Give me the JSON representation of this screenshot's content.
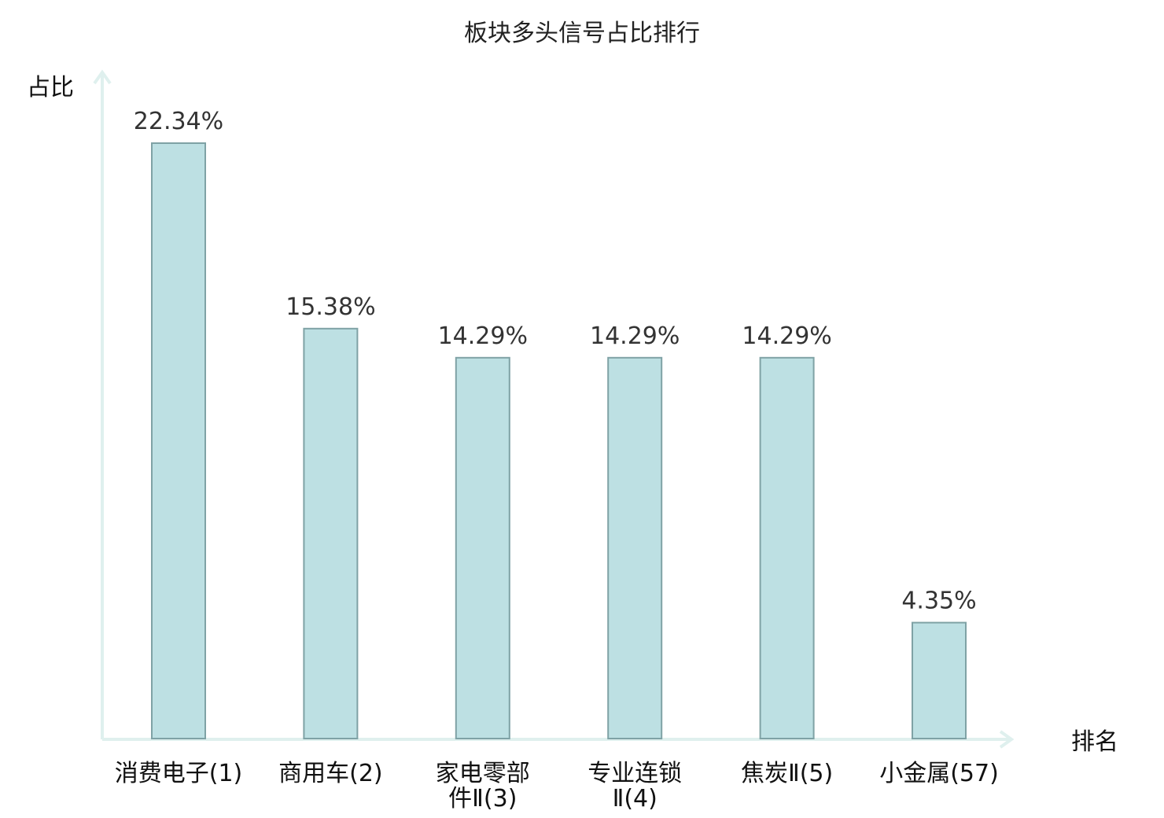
{
  "chart_data": {
    "type": "bar",
    "title": "板块多头信号占比排行",
    "ylabel": "占比",
    "xlabel": "排名",
    "categories": [
      "消费电子(1)",
      "商用车(2)",
      "家电零部件Ⅱ(3)",
      "专业连锁Ⅱ(4)",
      "焦炭Ⅱ(5)",
      "小金属(57)"
    ],
    "category_lines": [
      [
        "消费电子(1)"
      ],
      [
        "商用车(2)"
      ],
      [
        "家电零部",
        "件Ⅱ(3)"
      ],
      [
        "专业连锁",
        "Ⅱ(4)"
      ],
      [
        "焦炭Ⅱ(5)"
      ],
      [
        "小金属(57)"
      ]
    ],
    "highlight_category": "小金属(57)",
    "values": [
      22.34,
      15.38,
      14.29,
      14.29,
      14.29,
      4.35
    ],
    "value_labels": [
      "22.34%",
      "15.38%",
      "14.29%",
      "14.29%",
      "14.29%",
      "4.35%"
    ],
    "ylim": [
      0,
      22.34
    ],
    "grid": false,
    "legend": "none"
  },
  "colors": {
    "bar_fill": "#bde0e3",
    "bar_stroke": "#7fa2a5",
    "axis": "#dff0ee",
    "highlight": "#dd1111",
    "text": "#111111"
  }
}
